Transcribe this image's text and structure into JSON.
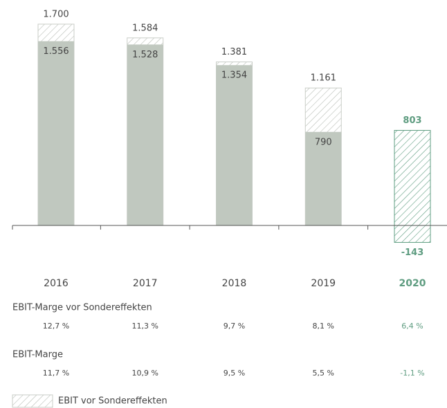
{
  "chart_data": {
    "type": "bar",
    "categories": [
      "2016",
      "2017",
      "2018",
      "2019",
      "2020"
    ],
    "series": [
      {
        "name": "EBIT vor Sondereffekten",
        "color": "#c9cdc7",
        "pattern": "hatch",
        "values": [
          1700,
          1584,
          1381,
          1161,
          803
        ],
        "value_labels": [
          "1.700",
          "1.584",
          "1.381",
          "1.161",
          "803"
        ]
      },
      {
        "color": "#c0c8bf",
        "values": [
          1556,
          1528,
          1354,
          790,
          -143
        ],
        "value_labels": [
          "1.556",
          "1.528",
          "1.354",
          "790",
          "-143"
        ]
      }
    ],
    "highlight_index": 4,
    "highlight_color": "#5e9c80",
    "ylim": [
      -300,
      1800
    ],
    "margins": [
      {
        "label": "EBIT-Marge vor Sondereffekten",
        "values": [
          "12,7 %",
          "11,3 %",
          "9,7 %",
          "8,1 %",
          "6,4 %"
        ]
      },
      {
        "label": "EBIT-Marge",
        "values": [
          "11,7 %",
          "10,9 %",
          "9,5 %",
          "5,5 %",
          "-1,1 %"
        ]
      }
    ]
  }
}
